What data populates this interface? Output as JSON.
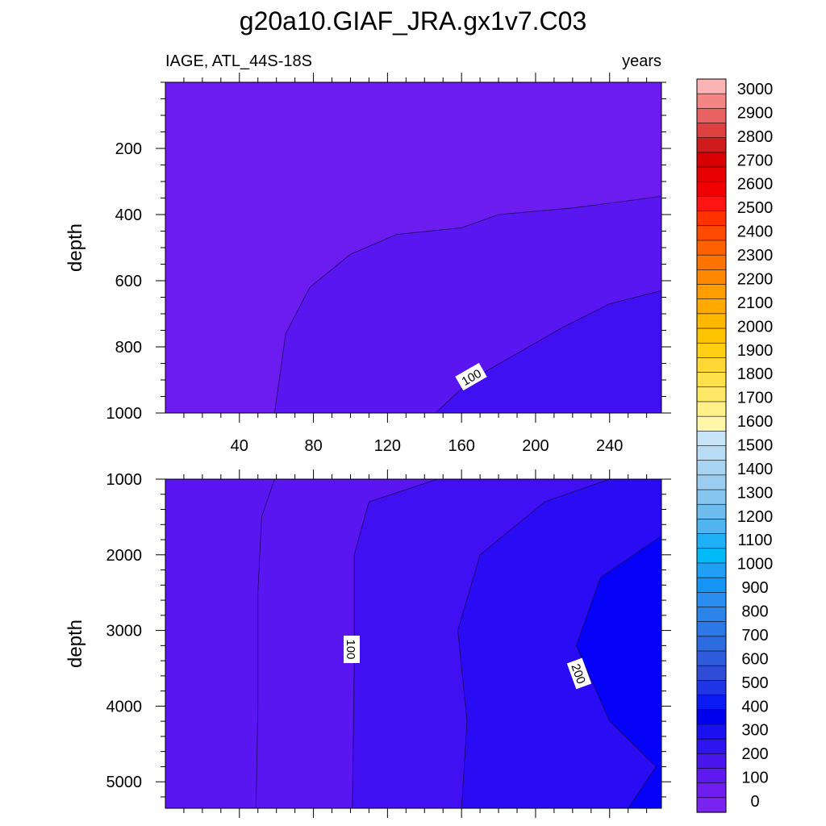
{
  "title": "g20a10.GIAF_JRA.gx1v7.C03",
  "left_subtitle": "IAGE, ATL_44S-18S",
  "right_subtitle": "years",
  "colorbar": {
    "labels": [
      "3000",
      "2900",
      "2800",
      "2700",
      "2600",
      "2500",
      "2400",
      "2300",
      "2200",
      "2100",
      "2000",
      "1900",
      "1800",
      "1700",
      "1600",
      "1500",
      "1400",
      "1300",
      "1200",
      "1100",
      "1000",
      "900",
      "800",
      "700",
      "600",
      "500",
      "400",
      "300",
      "200",
      "100",
      "0"
    ],
    "colors": [
      "#fcb3b3",
      "#f38585",
      "#e86262",
      "#de3f3f",
      "#cf1b1b",
      "#d80000",
      "#e60000",
      "#f00000",
      "#ff1414",
      "#ff3300",
      "#ff4a00",
      "#ff6000",
      "#ff7300",
      "#ff8800",
      "#ff9c00",
      "#ffa800",
      "#ffb800",
      "#ffc400",
      "#ffcf14",
      "#ffd835",
      "#ffe04a",
      "#ffe866",
      "#fff08a",
      "#fff6aa",
      "#c8e4f8",
      "#b8dcf4",
      "#a8d4f2",
      "#9acdef",
      "#86c5ee",
      "#6ebdee",
      "#50b4f0",
      "#20b0f7",
      "#00bbf8",
      "#1fa0f5",
      "#1596f4",
      "#2a8ef0",
      "#2b84ea",
      "#2c78e6",
      "#2d6be0",
      "#2e5cdc",
      "#2f4cd6",
      "#1f36e4",
      "#0a1af2",
      "#0000ec",
      "#1a10f0",
      "#2e14ee",
      "#4a16ee",
      "#5c1aee",
      "#6e1cef",
      "#7a22ee"
    ]
  },
  "chart_data": [
    {
      "type": "heatmap",
      "panel": "upper",
      "ylabel": "depth",
      "xlim": [
        0,
        268
      ],
      "ylim": [
        0,
        1000
      ],
      "y_reversed": true,
      "x_ticks": [
        "40",
        "80",
        "120",
        "160",
        "200",
        "240"
      ],
      "y_ticks": [
        "200",
        "400",
        "600",
        "800",
        "1000"
      ],
      "contour_levels": [
        0,
        50,
        100,
        150,
        200
      ],
      "contour_labels": [
        "100"
      ],
      "contours": [
        {
          "level": 50,
          "points": [
            [
              59,
              1000
            ],
            [
              65,
              760
            ],
            [
              78,
              620
            ],
            [
              100,
              520
            ],
            [
              125,
              460
            ],
            [
              160,
              440
            ],
            [
              180,
              400
            ],
            [
              220,
              380
            ],
            [
              268,
              345
            ]
          ]
        },
        {
          "level": 100,
          "points": [
            [
              146,
              1000
            ],
            [
              165,
              900
            ],
            [
              190,
              820
            ],
            [
              215,
              740
            ],
            [
              240,
              670
            ],
            [
              268,
              630
            ]
          ]
        }
      ]
    },
    {
      "type": "heatmap",
      "panel": "lower",
      "ylabel": "depth",
      "xlim": [
        0,
        268
      ],
      "ylim": [
        1000,
        5350
      ],
      "y_reversed": true,
      "y_ticks": [
        "1000",
        "2000",
        "3000",
        "4000",
        "5000"
      ],
      "contour_levels": [
        50,
        100,
        150,
        200
      ],
      "contour_labels": [
        "100",
        "200"
      ],
      "contours": [
        {
          "level": 50,
          "points": [
            [
              59,
              1000
            ],
            [
              52,
              1500
            ],
            [
              50,
              2500
            ],
            [
              50,
              4000
            ],
            [
              49,
              5350
            ]
          ]
        },
        {
          "level": 100,
          "points": [
            [
              147,
              1000
            ],
            [
              110,
              1300
            ],
            [
              102,
              2000
            ],
            [
              102,
              3500
            ],
            [
              101,
              5350
            ]
          ]
        },
        {
          "level": 150,
          "points": [
            [
              240,
              1000
            ],
            [
              205,
              1300
            ],
            [
              170,
              2000
            ],
            [
              158,
              3000
            ],
            [
              163,
              4200
            ],
            [
              160,
              5350
            ]
          ]
        },
        {
          "level": 200,
          "points": [
            [
              268,
              1750
            ],
            [
              235,
              2300
            ],
            [
              222,
              3200
            ],
            [
              240,
              4200
            ],
            [
              265,
              4800
            ],
            [
              250,
              5350
            ]
          ]
        }
      ]
    }
  ]
}
